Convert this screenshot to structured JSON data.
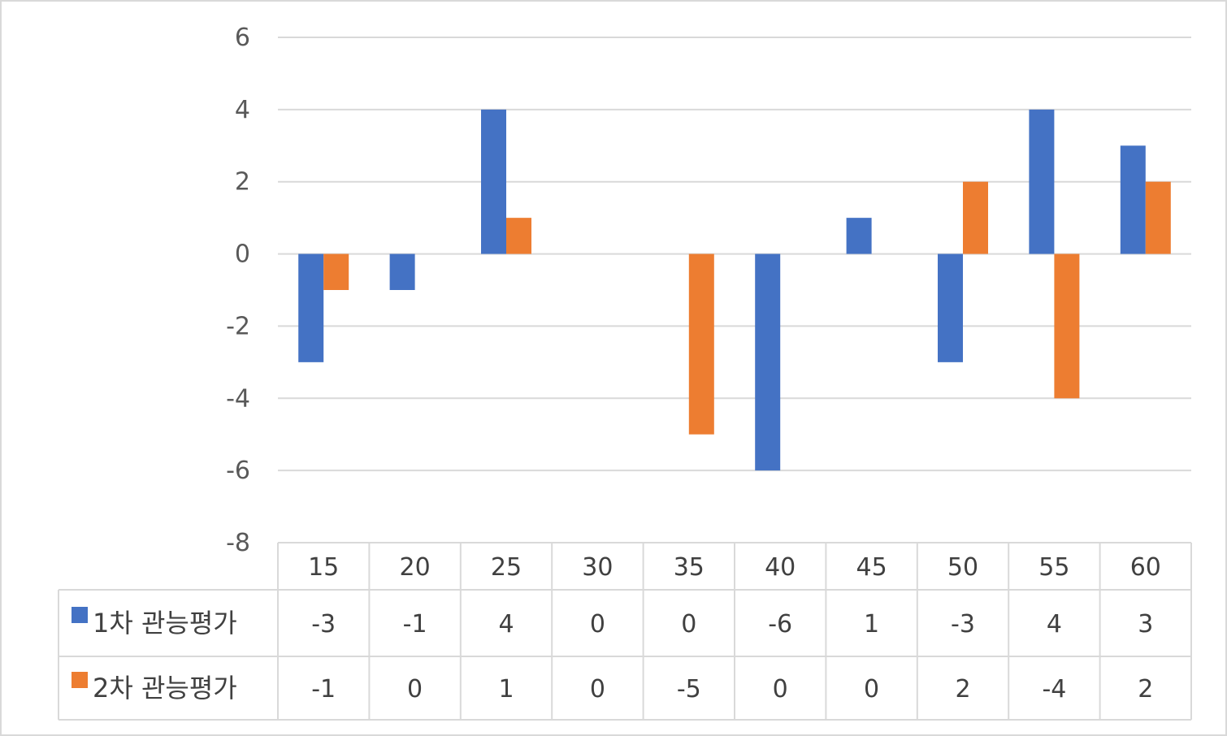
{
  "chart_data": {
    "type": "bar",
    "title": "",
    "xlabel": "",
    "ylabel": "",
    "categories": [
      "15",
      "20",
      "25",
      "30",
      "35",
      "40",
      "45",
      "50",
      "55",
      "60"
    ],
    "series": [
      {
        "name": "1차 관능평가",
        "color": "#4472c4",
        "values": [
          -3,
          -1,
          4,
          0,
          0,
          -6,
          1,
          -3,
          4,
          3
        ]
      },
      {
        "name": "2차 관능평가",
        "color": "#ed7d31",
        "values": [
          -1,
          0,
          1,
          0,
          -5,
          0,
          0,
          2,
          -4,
          2
        ]
      }
    ],
    "ylim": [
      -8,
      6
    ],
    "yticks": [
      6,
      4,
      2,
      0,
      -2,
      -4,
      -6,
      -8
    ],
    "grid": true,
    "legend": "data-table"
  }
}
